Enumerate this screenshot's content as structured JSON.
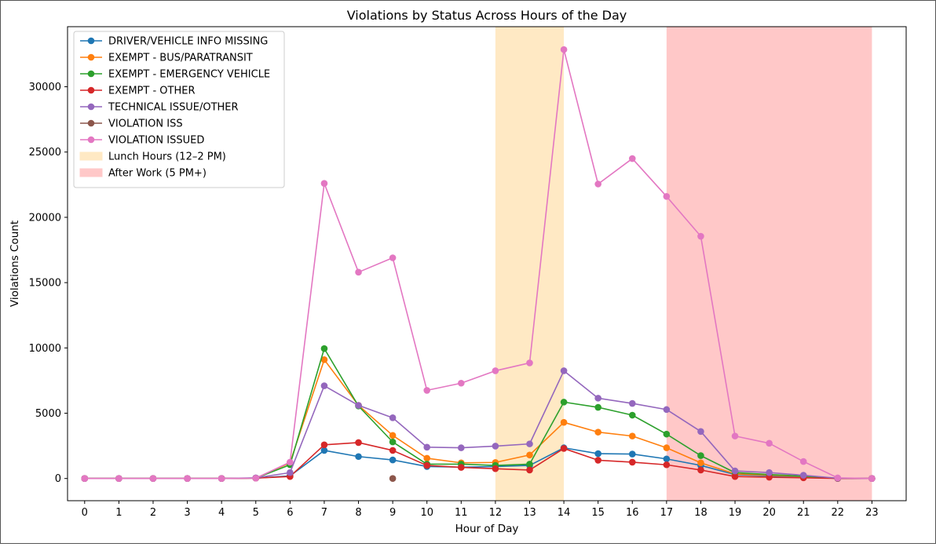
{
  "chart_data": {
    "type": "line",
    "title": "Violations by Status Across Hours of the Day",
    "xlabel": "Hour of Day",
    "ylabel": "Violations Count",
    "x": [
      0,
      1,
      2,
      3,
      4,
      5,
      6,
      7,
      8,
      9,
      10,
      11,
      12,
      13,
      14,
      15,
      16,
      17,
      18,
      19,
      20,
      21,
      22,
      23
    ],
    "xlim": [
      -0.5,
      24.0
    ],
    "ylim": [
      -1700,
      34600
    ],
    "yticks": [
      0,
      5000,
      10000,
      15000,
      20000,
      25000,
      30000
    ],
    "grid": false,
    "legend_position": "upper-left",
    "series": [
      {
        "name": "DRIVER/VEHICLE INFO MISSING",
        "color": "#1f77b4",
        "values": [
          0,
          0,
          0,
          0,
          0,
          30,
          200,
          2150,
          1680,
          1420,
          920,
          870,
          920,
          1000,
          2350,
          1900,
          1870,
          1500,
          1000,
          300,
          200,
          120,
          10,
          0
        ]
      },
      {
        "name": "EXEMPT - BUS/PARATRANSIT",
        "color": "#ff7f0e",
        "values": [
          0,
          0,
          0,
          0,
          0,
          30,
          1200,
          9100,
          5600,
          3300,
          1550,
          1200,
          1230,
          1800,
          4300,
          3550,
          3250,
          2350,
          1200,
          350,
          250,
          150,
          10,
          0
        ]
      },
      {
        "name": "EXEMPT - EMERGENCY VEHICLE",
        "color": "#2ca02c",
        "values": [
          0,
          0,
          0,
          0,
          0,
          30,
          1050,
          9950,
          5550,
          2800,
          1100,
          1100,
          1000,
          1100,
          5850,
          5450,
          4850,
          3400,
          1750,
          450,
          300,
          180,
          10,
          0
        ]
      },
      {
        "name": "EXEMPT - OTHER",
        "color": "#d62728",
        "values": [
          0,
          0,
          0,
          0,
          0,
          30,
          150,
          2580,
          2750,
          2150,
          1000,
          850,
          750,
          650,
          2300,
          1400,
          1250,
          1050,
          650,
          150,
          100,
          50,
          10,
          0
        ]
      },
      {
        "name": "TECHNICAL ISSUE/OTHER",
        "color": "#9467bd",
        "values": [
          0,
          0,
          0,
          0,
          0,
          50,
          450,
          7100,
          5600,
          4650,
          2400,
          2350,
          2480,
          2650,
          8250,
          6150,
          5750,
          5280,
          3600,
          580,
          450,
          250,
          20,
          0
        ]
      },
      {
        "name": "VIOLATION ISS",
        "color": "#8c564b",
        "values": [
          null,
          null,
          null,
          null,
          null,
          null,
          null,
          null,
          null,
          0,
          null,
          null,
          null,
          null,
          null,
          null,
          null,
          null,
          null,
          null,
          null,
          null,
          null,
          null
        ]
      },
      {
        "name": "VIOLATION ISSUED",
        "color": "#e377c2",
        "values": [
          0,
          0,
          0,
          0,
          0,
          20,
          1250,
          22600,
          15800,
          16900,
          6750,
          7300,
          8250,
          8850,
          32850,
          22550,
          24500,
          21600,
          18550,
          3250,
          2700,
          1300,
          50,
          0
        ]
      }
    ],
    "shaded_regions": [
      {
        "label": "Lunch Hours (12–2 PM)",
        "x_start": 12,
        "x_end": 14,
        "color": "#ffe9c4"
      },
      {
        "label": "After Work (5 PM+)",
        "x_start": 17,
        "x_end": 23,
        "color": "#ffc8c8"
      }
    ]
  }
}
